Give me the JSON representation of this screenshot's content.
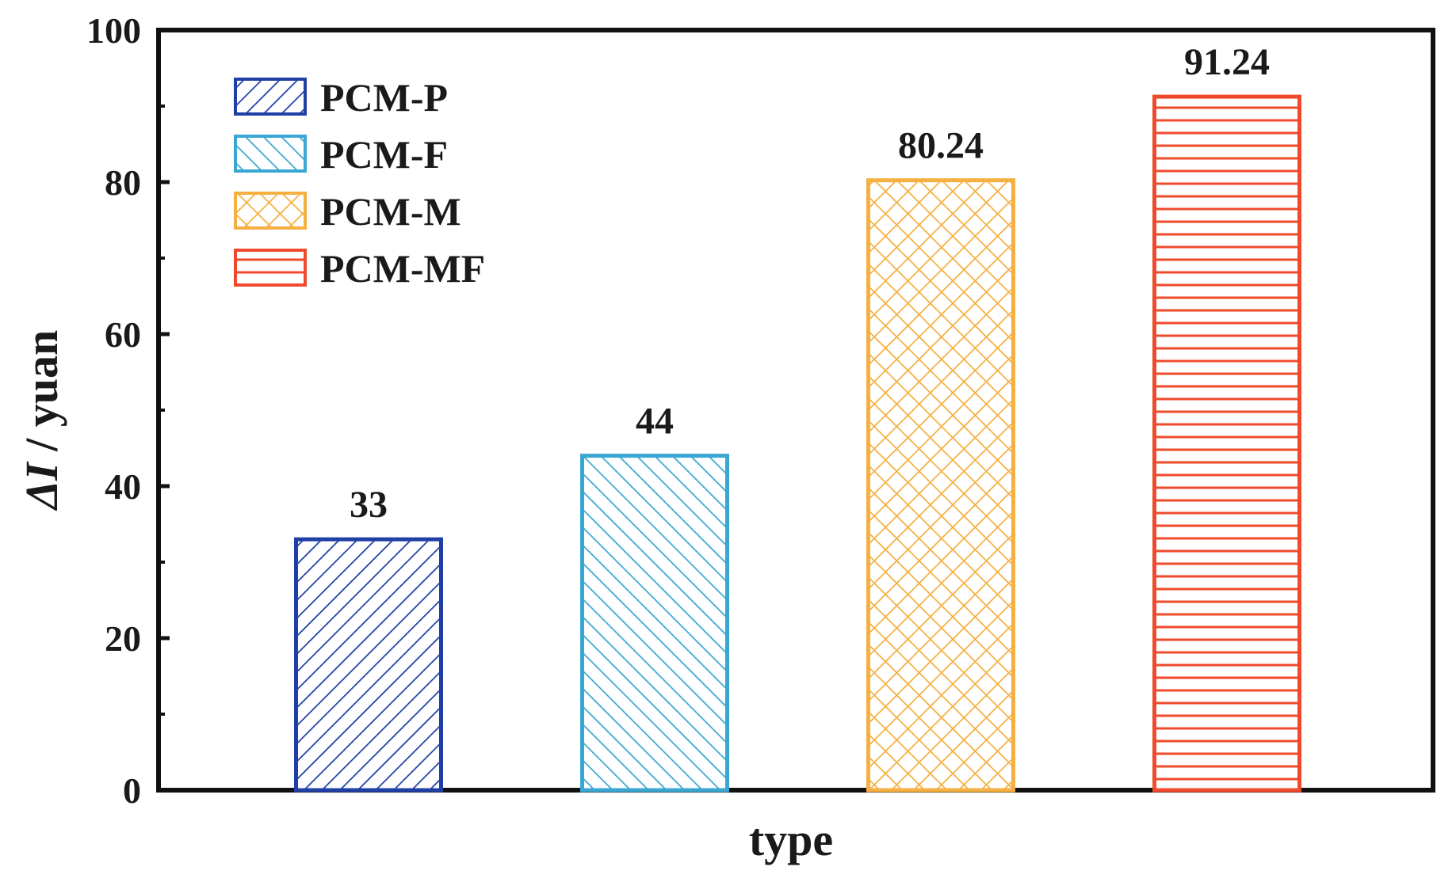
{
  "chart_data": {
    "type": "bar",
    "title": "",
    "xlabel": "type",
    "ylabel_symbol": "ΔI",
    "ylabel_unit": " / yuan",
    "ylim": [
      0,
      100
    ],
    "yticks": [
      "0",
      "20",
      "40",
      "60",
      "80",
      "100"
    ],
    "categories": [
      "PCM-P",
      "PCM-F",
      "PCM-M",
      "PCM-MF"
    ],
    "values": [
      33,
      44,
      80.24,
      91.24
    ],
    "value_labels": [
      "33",
      "44",
      "80.24",
      "91.24"
    ],
    "legend": {
      "position": "top-left",
      "entries": [
        "PCM-P",
        "PCM-F",
        "PCM-M",
        "PCM-MF"
      ]
    },
    "series_styles": [
      {
        "name": "PCM-P",
        "color": "#1f3fa6",
        "pattern": "diagonal-up"
      },
      {
        "name": "PCM-F",
        "color": "#3aa7d2",
        "pattern": "diagonal-down"
      },
      {
        "name": "PCM-M",
        "color": "#f5b041",
        "pattern": "crosshatch"
      },
      {
        "name": "PCM-MF",
        "color": "#f04a2c",
        "pattern": "horizontal"
      }
    ]
  }
}
